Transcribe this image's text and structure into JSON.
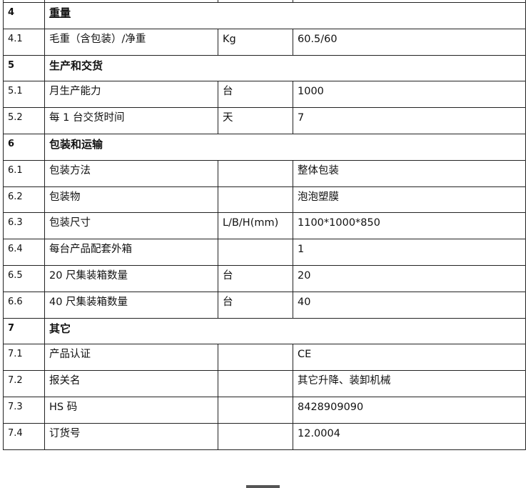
{
  "rows": [
    {
      "no": "4",
      "name": "重量",
      "section": true
    },
    {
      "no": "4.1",
      "name": "毛重（含包装）/净重",
      "unit": "Kg",
      "value": "60.5/60"
    },
    {
      "no": "5",
      "name": "生产和交货",
      "section": true
    },
    {
      "no": "5.1",
      "name": "月生产能力",
      "unit": "台",
      "value": "1000"
    },
    {
      "no": "5.2",
      "name": "每 1 台交货时间",
      "unit": "天",
      "value": "7"
    },
    {
      "no": "6",
      "name": "包装和运输",
      "section": true
    },
    {
      "no": "6.1",
      "name": "包装方法",
      "unit": "",
      "value": "整体包装"
    },
    {
      "no": "6.2",
      "name": "包装物",
      "unit": "",
      "value": "泡泡塑膜"
    },
    {
      "no": "6.3",
      "name": "包装尺寸",
      "unit": "L/B/H(mm)",
      "value": "1100*1000*850"
    },
    {
      "no": "6.4",
      "name": "每台产品配套外箱",
      "unit": "",
      "value": "1"
    },
    {
      "no": "6.5",
      "name": "20 尺集装箱数量",
      "unit": "台",
      "value": "20"
    },
    {
      "no": "6.6",
      "name": "40 尺集装箱数量",
      "unit": "台",
      "value": "40"
    },
    {
      "no": "7",
      "name": "其它",
      "section": true
    },
    {
      "no": "7.1",
      "name": "产品认证",
      "unit": "",
      "value": "CE"
    },
    {
      "no": "7.2",
      "name": "报关名",
      "unit": "",
      "value": "其它升降、装卸机械"
    },
    {
      "no": "7.3",
      "name": "HS 码",
      "unit": "",
      "value": "8428909090"
    },
    {
      "no": "7.4",
      "name": "订货号",
      "unit": "",
      "value": "12.0004"
    }
  ]
}
